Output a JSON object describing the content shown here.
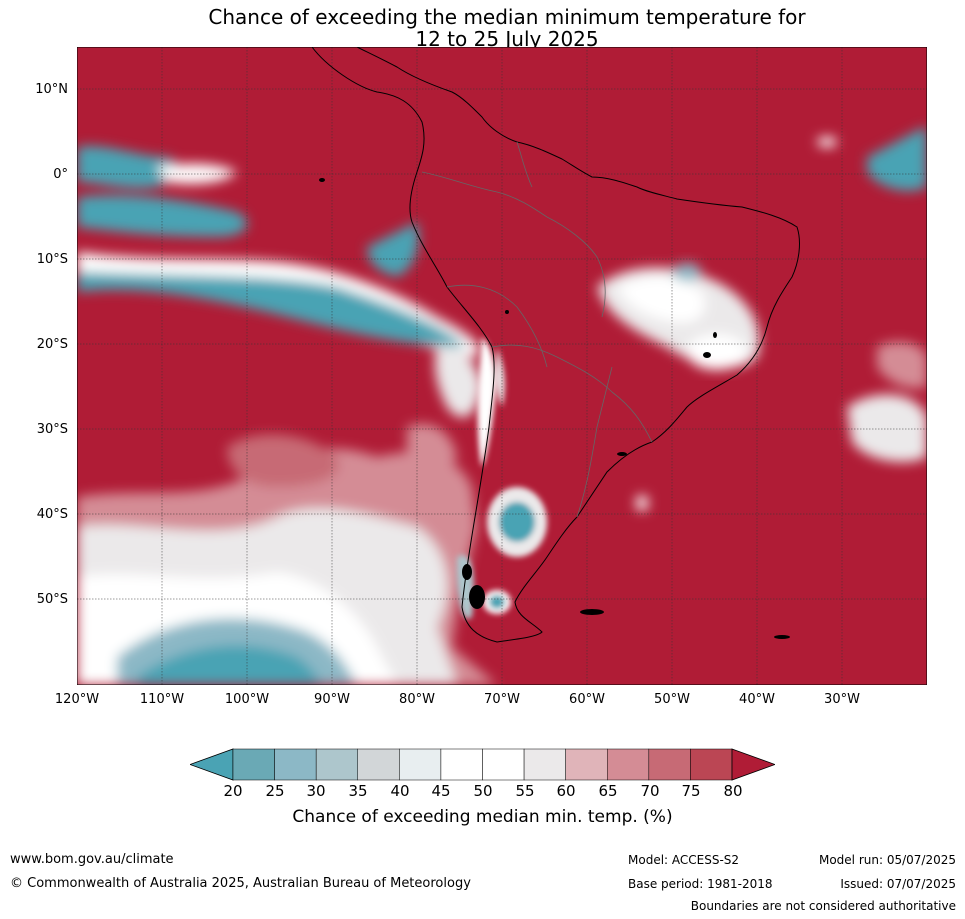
{
  "title": {
    "line1": "Chance of exceeding the median minimum temperature for",
    "line2": "12 to 25 July 2025"
  },
  "map": {
    "lat_labels": [
      "10°N",
      "0°",
      "10°S",
      "20°S",
      "30°S",
      "40°S",
      "50°S"
    ],
    "lon_labels": [
      "120°W",
      "110°W",
      "100°W",
      "90°W",
      "80°W",
      "70°W",
      "60°W",
      "50°W",
      "40°W",
      "30°W"
    ]
  },
  "colorbar": {
    "ticks": [
      "20",
      "25",
      "30",
      "35",
      "40",
      "45",
      "50",
      "55",
      "60",
      "65",
      "70",
      "75",
      "80"
    ],
    "colors": [
      "#4aa3b4",
      "#6aa9b5",
      "#8cb8c6",
      "#adc6cc",
      "#d2d6d8",
      "#e8eef0",
      "#ffffff",
      "#ffffff",
      "#ebe9ea",
      "#e0b4b9",
      "#d48c95",
      "#c76a75",
      "#bb4654",
      "#b01c36"
    ],
    "label": "Chance of exceeding median min. temp. (%)"
  },
  "footer": {
    "website": "www.bom.gov.au/climate",
    "copyright": "© Commonwealth of Australia 2025, Australian Bureau of Meteorology",
    "model": "Model: ACCESS-S2",
    "base_period": "Base period: 1981-2018",
    "model_run": "Model run: 05/07/2025",
    "issued": "Issued: 07/07/2025",
    "disclaimer": "Boundaries are not considered authoritative"
  }
}
